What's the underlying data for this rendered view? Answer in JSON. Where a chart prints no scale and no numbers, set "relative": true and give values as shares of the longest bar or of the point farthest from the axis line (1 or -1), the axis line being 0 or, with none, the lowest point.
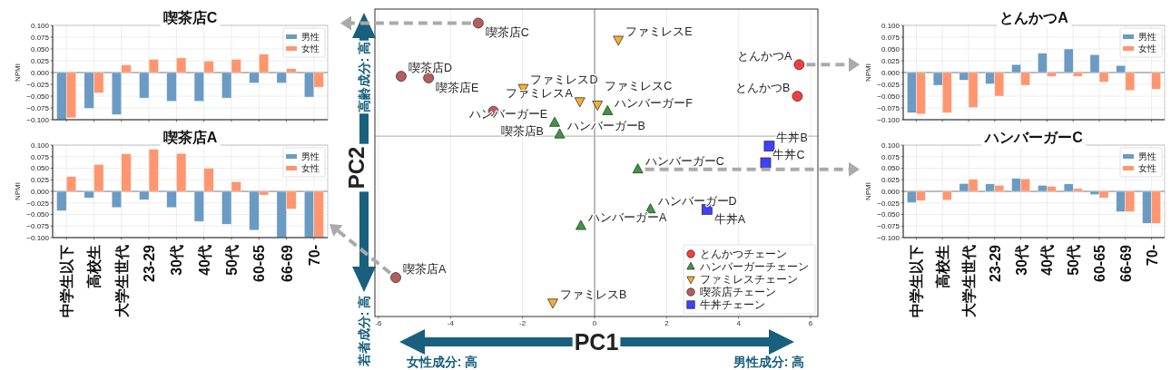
{
  "chart_data": [
    {
      "type": "bar",
      "title": "喫茶店C",
      "ylabel": "NPMI",
      "categories": [
        null,
        null,
        null,
        null,
        null,
        null,
        null,
        null,
        null,
        null
      ],
      "series": [
        {
          "name": "男性",
          "color": "#6b9bc3",
          "values": [
            -0.1,
            -0.076,
            -0.089,
            -0.054,
            -0.061,
            -0.061,
            -0.054,
            -0.022,
            -0.022,
            -0.052
          ]
        },
        {
          "name": "女性",
          "color": "#ff9670",
          "values": [
            -0.096,
            -0.043,
            0.016,
            0.028,
            0.031,
            0.024,
            0.028,
            0.039,
            0.008,
            -0.031
          ]
        }
      ],
      "ylim": [
        -0.1,
        0.1
      ],
      "yticks": [
        {
          "value": -0.1,
          "label": "−0.100"
        },
        {
          "value": -0.075,
          "label": "−0.075"
        },
        {
          "value": -0.05,
          "label": "−0.050"
        },
        {
          "value": -0.025,
          "label": "−0.025"
        },
        {
          "value": 0,
          "label": "0.000"
        },
        {
          "value": 0.025,
          "label": "0.025"
        },
        {
          "value": 0.05,
          "label": "0.050"
        },
        {
          "value": 0.075,
          "label": "0.075"
        },
        {
          "value": 0.1,
          "label": "0.100"
        }
      ],
      "grid": true,
      "legend": "top right",
      "ref_lines": [
        {
          "axis": "y",
          "value": 0,
          "color": "#808080"
        }
      ]
    },
    {
      "type": "bar",
      "title": "喫茶店A",
      "ylabel": "NPMI",
      "categories": [
        "中学生以下",
        "高校生",
        "大学生世代",
        "23-29",
        "30代",
        "40代",
        "50代",
        "60-65",
        "66-69",
        "70-"
      ],
      "series": [
        {
          "name": "男性",
          "color": "#6b9bc3",
          "values": [
            -0.042,
            -0.014,
            -0.035,
            -0.018,
            -0.035,
            -0.065,
            -0.071,
            -0.084,
            -0.1,
            -0.1
          ]
        },
        {
          "name": "女性",
          "color": "#ff9670",
          "values": [
            0.032,
            0.058,
            0.081,
            0.091,
            0.082,
            0.05,
            0.021,
            -0.008,
            -0.038,
            -0.1
          ]
        }
      ],
      "ylim": [
        -0.1,
        0.1
      ],
      "yticks": [
        {
          "value": -0.1,
          "label": "−0.100"
        },
        {
          "value": -0.075,
          "label": "−0.075"
        },
        {
          "value": -0.05,
          "label": "−0.050"
        },
        {
          "value": -0.025,
          "label": "−0.025"
        },
        {
          "value": 0,
          "label": "0.000"
        },
        {
          "value": 0.025,
          "label": "0.025"
        },
        {
          "value": 0.05,
          "label": "0.050"
        },
        {
          "value": 0.075,
          "label": "0.075"
        },
        {
          "value": 0.1,
          "label": "0.100"
        }
      ],
      "grid": true,
      "legend": "top right",
      "ref_lines": [
        {
          "axis": "y",
          "value": 0,
          "color": "#808080"
        }
      ]
    },
    {
      "type": "scatter",
      "xlabel": "PC1",
      "ylabel": "PC2",
      "relative": true,
      "xlim": [
        -6.1,
        6.2
      ],
      "xticks": [
        -6,
        -4,
        -2,
        0,
        2,
        4,
        6
      ],
      "grid": "x",
      "legend": "bottom right",
      "tick_labels": "x",
      "ref_lines": [
        {
          "axis": "x",
          "value": 0,
          "color": "#808080"
        }
      ],
      "series": [
        {
          "name": "とんかつチェーン",
          "color": "#ff3b3b",
          "marker": "circle",
          "x": [
            5.68,
            5.63
          ],
          "values": [
            0.43,
            0.24
          ]
        },
        {
          "name": "ハンバーガーチェーン",
          "color": "#3a9a3a",
          "marker": "triangle",
          "x": [
            -0.38,
            -0.97,
            1.2,
            1.55,
            -1.11,
            0.36
          ],
          "values": [
            -0.54,
            0.01,
            -0.2,
            -0.44,
            0.08,
            0.15
          ]
        },
        {
          "name": "ファミレスチェーン",
          "color": "#f5b030",
          "marker": "triangle-down",
          "x": [
            -0.41,
            -1.16,
            0.08,
            -1.98,
            0.66
          ],
          "values": [
            0.21,
            -1.0,
            0.19,
            0.29,
            0.58
          ]
        },
        {
          "name": "喫茶店チェーン",
          "color": "#b85c5c",
          "marker": "circle",
          "x": [
            -5.52,
            -2.81,
            -3.23,
            -5.37,
            -4.61
          ],
          "values": [
            -0.85,
            0.15,
            0.68,
            0.36,
            0.35
          ]
        },
        {
          "name": "牛丼チェーン",
          "color": "#4040ff",
          "marker": "square",
          "x": [
            3.12,
            4.85,
            4.75
          ],
          "values": [
            -0.44,
            -0.06,
            -0.16
          ]
        }
      ],
      "annotations": [
        "高齢成分: 高",
        "若者成分: 高",
        "女性成分: 高",
        "男性成分: 高",
        {
          "text": "喫茶店C",
          "x": -3.23,
          "y": 0.68
        },
        {
          "text": "喫茶店A",
          "x": -5.52,
          "y": -0.85
        },
        {
          "text": "とんかつA",
          "x": 5.68,
          "y": 0.43
        },
        {
          "text": "ハンバーガーC",
          "x": 1.2,
          "y": -0.2
        },
        {
          "text": "とんかつB",
          "x": 5.63,
          "y": 0.24
        },
        {
          "text": "ハンバーガーA",
          "x": -0.38,
          "y": -0.54
        },
        {
          "text": "ハンバーガーB",
          "x": -0.97,
          "y": 0.01
        },
        {
          "text": "ハンバーガーD",
          "x": 1.55,
          "y": -0.44
        },
        {
          "text": "ハンバーガーE",
          "x": -1.11,
          "y": 0.08
        },
        {
          "text": "ハンバーガーF",
          "x": 0.36,
          "y": 0.15
        },
        {
          "text": "ファミレスA",
          "x": -0.41,
          "y": 0.21
        },
        {
          "text": "ファミレスB",
          "x": -1.16,
          "y": -1.0
        },
        {
          "text": "ファミレスC",
          "x": 0.08,
          "y": 0.19
        },
        {
          "text": "ファミレスD",
          "x": -1.98,
          "y": 0.29
        },
        {
          "text": "ファミレスE",
          "x": 0.66,
          "y": 0.58
        },
        {
          "text": "喫茶店B",
          "x": -2.81,
          "y": 0.15
        },
        {
          "text": "喫茶店D",
          "x": -5.37,
          "y": 0.36
        },
        {
          "text": "喫茶店E",
          "x": -4.61,
          "y": 0.35
        },
        {
          "text": "牛丼A",
          "x": 3.12,
          "y": -0.44
        },
        {
          "text": "牛丼B",
          "x": 4.85,
          "y": -0.06
        },
        {
          "text": "牛丼C",
          "x": 4.75,
          "y": -0.16
        }
      ]
    },
    {
      "type": "bar",
      "title": "とんかつA",
      "ylabel": "NPMI",
      "categories": [
        null,
        null,
        null,
        null,
        null,
        null,
        null,
        null,
        null,
        null
      ],
      "series": [
        {
          "name": "男性",
          "color": "#6b9bc3",
          "values": [
            -0.085,
            -0.027,
            -0.016,
            -0.024,
            0.017,
            0.041,
            0.05,
            0.038,
            0.015,
            null
          ]
        },
        {
          "name": "女性",
          "color": "#ff9670",
          "values": [
            -0.088,
            -0.085,
            -0.074,
            -0.05,
            -0.027,
            -0.008,
            -0.008,
            -0.02,
            -0.038,
            -0.035
          ]
        }
      ],
      "ylim": [
        -0.1,
        0.1
      ],
      "yticks": [
        {
          "value": -0.1,
          "label": "−0.100"
        },
        {
          "value": -0.075,
          "label": "−0.075"
        },
        {
          "value": -0.05,
          "label": "−0.050"
        },
        {
          "value": -0.025,
          "label": "−0.025"
        },
        {
          "value": 0,
          "label": "0.000"
        },
        {
          "value": 0.025,
          "label": "0.025"
        },
        {
          "value": 0.05,
          "label": "0.050"
        },
        {
          "value": 0.075,
          "label": "0.075"
        },
        {
          "value": 0.1,
          "label": "0.100"
        }
      ],
      "grid": true,
      "legend": "top right",
      "ref_lines": [
        {
          "axis": "y",
          "value": 0,
          "color": "#808080"
        }
      ]
    },
    {
      "type": "bar",
      "title": "ハンバーガーC",
      "ylabel": "NPMI",
      "categories": [
        "中学生以下",
        "高校生",
        "大学生世代",
        "23-29",
        "30代",
        "40代",
        "50代",
        "60-65",
        "66-69",
        "70-"
      ],
      "series": [
        {
          "name": "男性",
          "color": "#6b9bc3",
          "values": [
            -0.024,
            null,
            0.017,
            0.016,
            0.028,
            0.013,
            0.016,
            -0.007,
            -0.044,
            -0.069
          ]
        },
        {
          "name": "女性",
          "color": "#ff9670",
          "values": [
            -0.02,
            -0.019,
            0.026,
            0.013,
            0.027,
            0.011,
            0.006,
            -0.014,
            -0.044,
            -0.069
          ]
        }
      ],
      "ylim": [
        -0.1,
        0.1
      ],
      "yticks": [
        {
          "value": -0.1,
          "label": "−0.100"
        },
        {
          "value": -0.075,
          "label": "−0.075"
        },
        {
          "value": -0.05,
          "label": "−0.050"
        },
        {
          "value": -0.025,
          "label": "−0.025"
        },
        {
          "value": 0,
          "label": "0.000"
        },
        {
          "value": 0.025,
          "label": "0.025"
        },
        {
          "value": 0.05,
          "label": "0.050"
        },
        {
          "value": 0.075,
          "label": "0.075"
        },
        {
          "value": 0.1,
          "label": "0.100"
        }
      ],
      "grid": true,
      "legend": "top right",
      "ref_lines": [
        {
          "axis": "y",
          "value": 0,
          "color": "#808080"
        }
      ]
    }
  ]
}
